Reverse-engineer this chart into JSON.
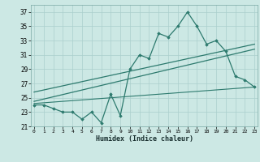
{
  "x": [
    0,
    1,
    2,
    3,
    4,
    5,
    6,
    7,
    8,
    9,
    10,
    11,
    12,
    13,
    14,
    15,
    16,
    17,
    18,
    19,
    20,
    21,
    22,
    23
  ],
  "y_jagged": [
    24,
    24,
    23.5,
    23,
    23,
    22,
    23,
    21.5,
    25.5,
    22.5,
    29,
    31,
    30.5,
    34,
    33.5,
    35,
    37,
    35,
    32.5,
    33,
    31.5,
    28,
    27.5,
    26.5
  ],
  "trend1_x": [
    0,
    23
  ],
  "trend1_y": [
    24.5,
    31.8
  ],
  "trend2_x": [
    0,
    23
  ],
  "trend2_y": [
    25.8,
    32.5
  ],
  "trend3_x": [
    0,
    23
  ],
  "trend3_y": [
    24.2,
    26.5
  ],
  "xlabel": "Humidex (Indice chaleur)",
  "yticks": [
    21,
    23,
    25,
    27,
    29,
    31,
    33,
    35,
    37
  ],
  "xticks": [
    0,
    1,
    2,
    3,
    4,
    5,
    6,
    7,
    8,
    9,
    10,
    11,
    12,
    13,
    14,
    15,
    16,
    17,
    18,
    19,
    20,
    21,
    22,
    23
  ],
  "xlim": [
    -0.3,
    23.3
  ],
  "ylim": [
    21,
    38
  ],
  "line_color": "#2d7a6e",
  "bg_color": "#cce8e4",
  "grid_color": "#aacfcc"
}
